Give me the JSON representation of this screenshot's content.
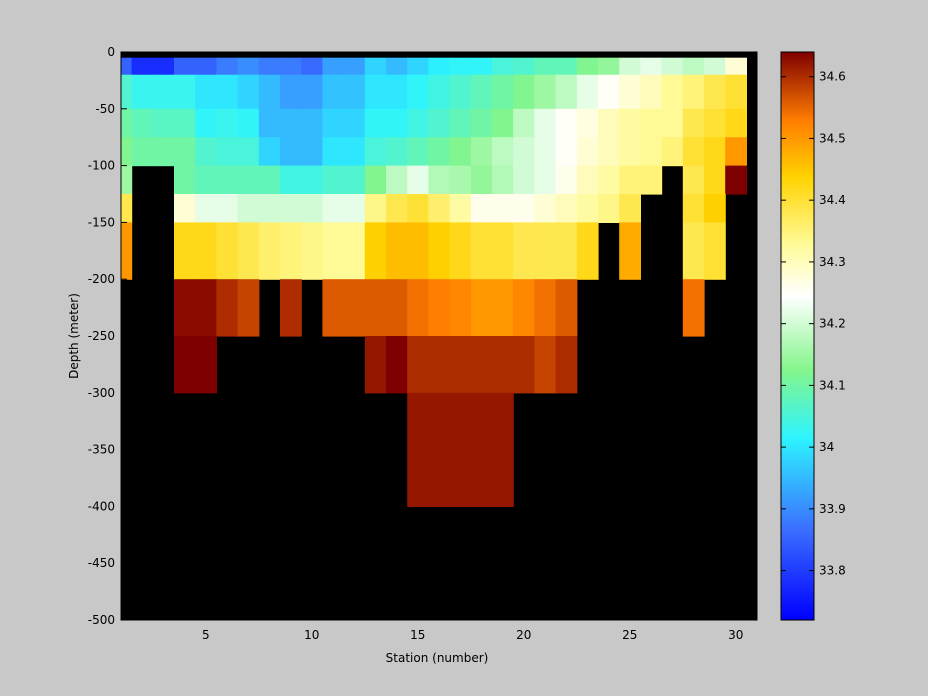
{
  "chart_data": {
    "type": "heatmap",
    "title": "",
    "xlabel": "Station (number)",
    "ylabel": "Depth (meter)",
    "xlim": [
      1,
      31
    ],
    "ylim": [
      -500,
      0
    ],
    "x_ticks": [
      5,
      10,
      15,
      20,
      25,
      30
    ],
    "x_tick_labels": [
      "5",
      "10",
      "15",
      "20",
      "25",
      "30"
    ],
    "y_ticks": [
      0,
      -50,
      -100,
      -150,
      -200,
      -250,
      -300,
      -350,
      -400,
      -450,
      -500
    ],
    "y_tick_labels": [
      "0",
      "-50",
      "-100",
      "-150",
      "-200",
      "-250",
      "-300",
      "-350",
      "-400",
      "-450",
      "-500"
    ],
    "stations": [
      1,
      2,
      3,
      4,
      5,
      6,
      7,
      8,
      9,
      10,
      11,
      12,
      13,
      14,
      15,
      16,
      17,
      18,
      19,
      20,
      21,
      22,
      23,
      24,
      25,
      26,
      27,
      28,
      29,
      30
    ],
    "depth_bins_m": [
      [
        0,
        -5
      ],
      [
        -5,
        -20
      ],
      [
        -20,
        -50
      ],
      [
        -50,
        -75
      ],
      [
        -75,
        -100
      ],
      [
        -100,
        -125
      ],
      [
        -125,
        -150
      ],
      [
        -150,
        -200
      ],
      [
        -200,
        -250
      ],
      [
        -250,
        -300
      ],
      [
        -300,
        -400
      ],
      [
        -400,
        -500
      ]
    ],
    "values": [
      [
        null,
        null,
        null,
        null,
        null,
        null,
        null,
        null,
        null,
        null,
        null,
        null,
        null,
        null,
        null,
        null,
        null,
        null,
        null,
        null,
        null,
        null,
        null,
        null,
        null,
        null,
        null,
        null,
        null,
        null
      ],
      [
        33.85,
        33.78,
        33.78,
        33.85,
        33.85,
        33.88,
        33.9,
        33.88,
        33.88,
        33.86,
        33.92,
        33.92,
        33.98,
        33.95,
        33.98,
        34.01,
        34.02,
        34.02,
        34.05,
        34.06,
        34.08,
        34.08,
        34.12,
        34.14,
        34.2,
        34.22,
        34.2,
        34.18,
        34.2,
        34.28
      ],
      [
        34.06,
        34.03,
        34.03,
        34.03,
        34.0,
        34.0,
        33.98,
        33.95,
        33.92,
        33.92,
        33.96,
        33.96,
        34.0,
        34.0,
        34.02,
        34.04,
        34.06,
        34.08,
        34.1,
        34.12,
        34.15,
        34.18,
        34.22,
        34.25,
        34.28,
        34.3,
        34.33,
        34.35,
        34.38,
        34.4
      ],
      [
        34.1,
        34.08,
        34.07,
        34.07,
        34.02,
        34.03,
        34.02,
        33.95,
        33.95,
        33.95,
        33.98,
        33.98,
        34.02,
        34.02,
        34.04,
        34.06,
        34.08,
        34.1,
        34.12,
        34.18,
        34.22,
        34.25,
        34.27,
        34.3,
        34.32,
        34.33,
        34.33,
        34.38,
        34.4,
        34.42
      ],
      [
        34.12,
        34.1,
        34.1,
        34.1,
        34.06,
        34.05,
        34.05,
        33.98,
        33.95,
        33.95,
        34.0,
        34.0,
        34.05,
        34.06,
        34.08,
        34.1,
        34.12,
        34.15,
        34.18,
        34.2,
        34.22,
        34.25,
        34.28,
        34.3,
        34.32,
        34.33,
        34.35,
        34.4,
        34.42,
        34.5
      ],
      [
        34.15,
        null,
        null,
        34.1,
        34.08,
        34.08,
        34.08,
        34.08,
        34.04,
        34.04,
        34.06,
        34.06,
        34.12,
        34.18,
        34.22,
        34.17,
        34.16,
        34.14,
        34.17,
        34.2,
        34.22,
        34.26,
        34.3,
        34.32,
        34.35,
        34.35,
        null,
        34.38,
        34.42,
        34.64
      ],
      [
        34.38,
        null,
        null,
        34.28,
        34.22,
        34.22,
        34.2,
        34.2,
        34.2,
        34.2,
        34.22,
        34.22,
        34.34,
        34.38,
        34.4,
        34.36,
        34.32,
        34.26,
        34.26,
        34.26,
        34.28,
        34.3,
        34.32,
        34.34,
        34.38,
        null,
        null,
        34.4,
        34.44,
        null
      ],
      [
        34.5,
        null,
        null,
        34.42,
        34.42,
        34.4,
        34.38,
        34.36,
        34.35,
        34.34,
        34.33,
        34.33,
        34.44,
        34.46,
        34.46,
        34.44,
        34.42,
        34.4,
        34.4,
        34.38,
        34.38,
        34.38,
        34.42,
        null,
        34.48,
        null,
        null,
        34.38,
        34.4,
        null
      ],
      [
        null,
        null,
        null,
        34.63,
        34.63,
        34.6,
        34.58,
        null,
        34.6,
        null,
        34.56,
        34.56,
        34.56,
        34.56,
        34.54,
        34.53,
        34.52,
        34.5,
        34.5,
        34.52,
        34.54,
        34.56,
        null,
        null,
        null,
        null,
        null,
        34.54,
        null,
        null
      ],
      [
        null,
        null,
        null,
        34.64,
        34.64,
        null,
        null,
        null,
        null,
        null,
        null,
        null,
        34.62,
        34.64,
        34.6,
        34.6,
        34.6,
        34.6,
        34.6,
        34.6,
        34.58,
        34.6,
        null,
        null,
        null,
        null,
        null,
        null,
        null,
        null
      ],
      [
        null,
        null,
        null,
        null,
        null,
        null,
        null,
        null,
        null,
        null,
        null,
        null,
        null,
        null,
        34.62,
        34.62,
        34.62,
        34.62,
        34.62,
        null,
        null,
        null,
        null,
        null,
        null,
        null,
        null,
        null,
        null,
        null
      ],
      [
        null,
        null,
        null,
        null,
        null,
        null,
        null,
        null,
        null,
        null,
        null,
        null,
        null,
        null,
        null,
        null,
        null,
        null,
        null,
        null,
        null,
        null,
        null,
        null,
        null,
        null,
        null,
        null,
        null,
        null
      ]
    ],
    "colorbar": {
      "clim": [
        33.72,
        34.64
      ],
      "ticks": [
        33.8,
        33.9,
        34,
        34.1,
        34.2,
        34.3,
        34.4,
        34.5,
        34.6
      ],
      "tick_labels": [
        "33.8",
        "33.9",
        "34",
        "34.1",
        "34.2",
        "34.3",
        "34.4",
        "34.5",
        "34.6"
      ]
    },
    "no_data_color": "#000000",
    "background_color": "#c8c8c8",
    "colormap": "jet"
  }
}
